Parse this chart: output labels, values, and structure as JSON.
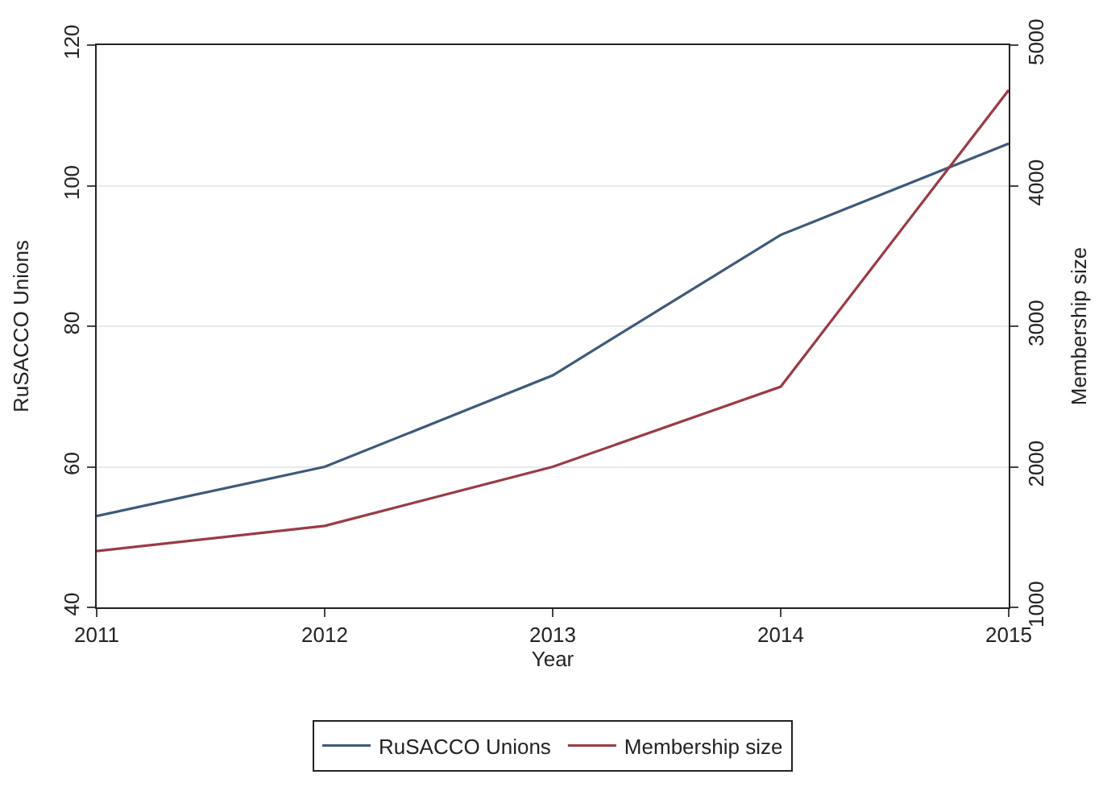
{
  "chart_data": {
    "type": "line",
    "xlabel": "Year",
    "ylabel": "RuSACCO Unions",
    "y2label": "Membership size",
    "x": [
      2011,
      2012,
      2013,
      2014,
      2015
    ],
    "xlim": [
      2011,
      2015
    ],
    "xticks": [
      2011,
      2012,
      2013,
      2014,
      2015
    ],
    "ylim": [
      40,
      120
    ],
    "yticks": [
      40,
      60,
      80,
      100,
      120
    ],
    "y2lim": [
      1000,
      5000
    ],
    "y2ticks": [
      1000,
      2000,
      3000,
      4000,
      5000
    ],
    "grid": "y",
    "legend": "bottom",
    "marker": "none",
    "line_style": "solid",
    "series": [
      {
        "name": "RuSACCO Unions",
        "color": "#3d5a7a",
        "values": [
          53,
          60,
          73,
          93,
          106
        ]
      },
      {
        "name": "Membership size",
        "color": "#9a3b45",
        "axis": "y2",
        "values": [
          1400,
          1580,
          2000,
          2570,
          4680
        ]
      }
    ]
  }
}
